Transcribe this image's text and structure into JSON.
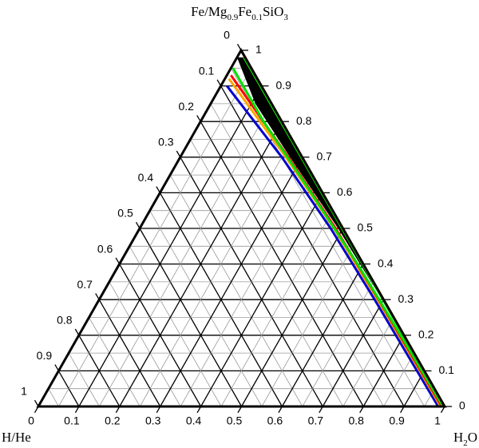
{
  "chart_data": {
    "type": "ternary",
    "grid": true,
    "fe_axis": {
      "title": [
        {
          "text": "Fe/Mg"
        },
        {
          "text": "0.9",
          "sub": true
        },
        {
          "text": "Fe"
        },
        {
          "text": "0.1",
          "sub": true
        },
        {
          "text": "SiO"
        },
        {
          "text": "3",
          "sub": true
        }
      ],
      "lim": [
        0,
        1
      ],
      "ticks": [
        0,
        0.1,
        0.2,
        0.3,
        0.4,
        0.5,
        0.6,
        0.7,
        0.8,
        0.9,
        1
      ]
    },
    "hhe_axis": {
      "title": [
        {
          "text": "H/He"
        }
      ],
      "lim": [
        0,
        1
      ],
      "ticks": [
        0,
        0.1,
        0.2,
        0.3,
        0.4,
        0.5,
        0.6,
        0.7,
        0.8,
        0.9,
        1
      ]
    },
    "water_axis": {
      "title": [
        {
          "text": "H"
        },
        {
          "text": "2",
          "sub": true
        },
        {
          "text": "O"
        }
      ],
      "lim": [
        0,
        1
      ],
      "ticks": [
        0,
        0.1,
        0.2,
        0.3,
        0.4,
        0.5,
        0.6,
        0.7,
        0.8,
        0.9,
        1
      ]
    },
    "series": [
      {
        "kind": "area",
        "color": "#000000",
        "fe": [
          0.98,
          0.85,
          0.7,
          0.5,
          0.3
        ],
        "hhe": [
          0.003,
          0.005,
          0.005,
          0.004,
          0.003
        ],
        "hhe2": [
          0.02,
          0.04,
          0.03,
          0.012,
          0.004
        ]
      },
      {
        "kind": "line",
        "color": "#0000cc",
        "fe": [
          0.9,
          0.7,
          0.5,
          0.3,
          0.1,
          0
        ],
        "hhe": [
          0.085,
          0.05,
          0.03,
          0.022,
          0.018,
          0.016
        ]
      },
      {
        "kind": "line",
        "color": "#ffa500",
        "fe": [
          0.92,
          0.7,
          0.5,
          0.3,
          0.1,
          0
        ],
        "hhe": [
          0.07,
          0.04,
          0.022,
          0.015,
          0.011,
          0.01
        ]
      },
      {
        "kind": "line",
        "color": "#ff0000",
        "fe": [
          0.93,
          0.7,
          0.5,
          0.3,
          0
        ],
        "hhe": [
          0.06,
          0.034,
          0.018,
          0.012,
          0.007
        ]
      },
      {
        "kind": "line",
        "color": "#00e000",
        "fe": [
          0.95,
          0.8,
          0.6,
          0.4,
          0.2,
          0
        ],
        "hhe": [
          0.045,
          0.045,
          0.028,
          0.014,
          0.008,
          0.004
        ]
      },
      {
        "kind": "line",
        "color": "#00e000",
        "fe": [
          0.98,
          0.5,
          0
        ],
        "hhe": [
          0.003,
          0.002,
          0.001
        ]
      },
      {
        "kind": "line",
        "color": "#e0c000",
        "fe": [
          0.99,
          0
        ],
        "hhe": [
          0,
          0
        ]
      },
      {
        "kind": "line",
        "color": "#8b0000",
        "fe": [
          1,
          0.9
        ],
        "hhe": [
          0,
          0
        ]
      }
    ]
  }
}
